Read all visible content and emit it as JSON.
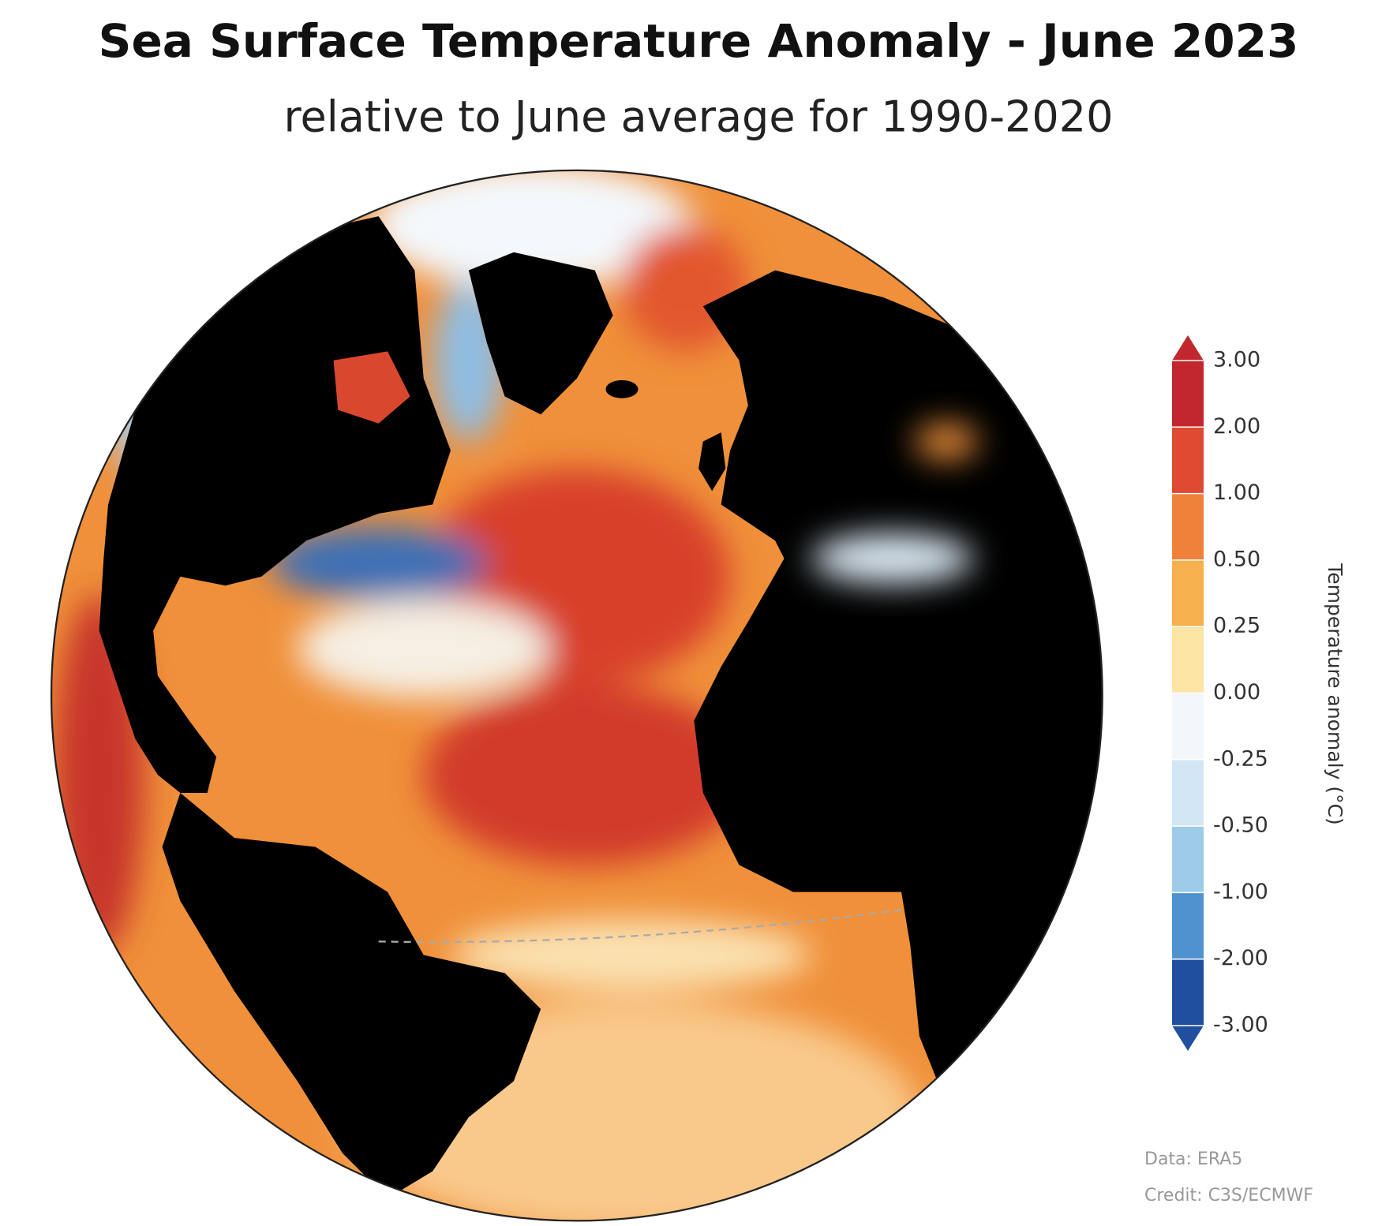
{
  "title": "Sea Surface Temperature Anomaly - June 2023",
  "subtitle": "relative to June average for 1990-2020",
  "colorbar": {
    "label": "Temperature anomaly (°C)",
    "ticks": [
      {
        "value": 3,
        "label": "3.00"
      },
      {
        "value": 2,
        "label": "2.00"
      },
      {
        "value": 1,
        "label": "1.00"
      },
      {
        "value": 0.5,
        "label": "0.50"
      },
      {
        "value": 0.25,
        "label": "0.25"
      },
      {
        "value": 0,
        "label": "0.00"
      },
      {
        "value": -0.25,
        "label": "-0.25"
      },
      {
        "value": -0.5,
        "label": "-0.50"
      },
      {
        "value": -1,
        "label": "-1.00"
      },
      {
        "value": -2,
        "label": "-2.00"
      },
      {
        "value": -3,
        "label": "-3.00"
      }
    ],
    "colors": [
      "#c1272d",
      "#df4a33",
      "#f0813a",
      "#f7b04e",
      "#fde5a6",
      "#f3f7fb",
      "#d3e6f4",
      "#9fcbea",
      "#4f92cf",
      "#1f4f9e"
    ]
  },
  "credits": {
    "data": "Data: ERA5",
    "credit": "Credit: C3S/ECMWF"
  }
}
